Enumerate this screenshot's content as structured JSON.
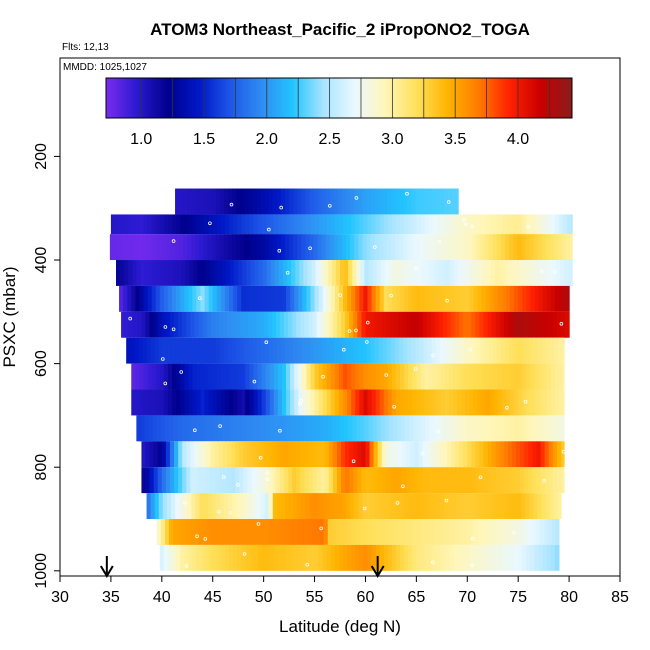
{
  "chart_data": {
    "type": "heatmap",
    "title": "ATOM3 Northeast_Pacific_2 iPropONO2_TOGA",
    "flights_label": "Flts: 12,13",
    "mmdd_label": "MMDD: 1025,1027",
    "xlabel": "Latitude (deg N)",
    "ylabel": "PSXC (mbar)",
    "xlim": [
      30,
      85
    ],
    "ylim": [
      1010,
      10
    ],
    "x_ticks": [
      30,
      35,
      40,
      45,
      50,
      55,
      60,
      65,
      70,
      75,
      80,
      85
    ],
    "y_ticks": [
      200,
      400,
      600,
      800,
      1000
    ],
    "colorbar": {
      "range": [
        0.72,
        4.43
      ],
      "ticks": [
        1.0,
        1.5,
        2.0,
        2.5,
        3.0,
        3.5,
        4.0
      ],
      "tick_labels": [
        "1.0",
        "1.5",
        "2.0",
        "2.5",
        "3.0",
        "3.5",
        "4.0"
      ],
      "colors": [
        "#7a2cf0",
        "#2a1ad0",
        "#00008c",
        "#0018c8",
        "#1e56e8",
        "#2f8cf2",
        "#22c4ff",
        "#a8e4ff",
        "#eaf8ff",
        "#fff6b8",
        "#ffe05a",
        "#ffb400",
        "#ff7a00",
        "#ff2000",
        "#c80000",
        "#8a1c1c"
      ]
    },
    "arrows_latitude": [
      34.6,
      61.2
    ],
    "bands": [
      {
        "p_top": 262,
        "p_bot": 312,
        "lat_start": 41.3,
        "lat_end": 69.1,
        "lat": [
          41.3,
          45,
          50,
          55,
          60,
          65,
          69.1
        ],
        "values": [
          1.0,
          1.05,
          1.35,
          1.75,
          2.05,
          2.25,
          2.3
        ]
      },
      {
        "p_top": 312,
        "p_bot": 350,
        "lat_start": 35.0,
        "lat_end": 80.3,
        "lat": [
          35,
          38,
          42,
          48,
          55,
          60,
          65,
          70,
          75,
          80.3
        ],
        "values": [
          1.0,
          0.95,
          1.2,
          1.6,
          2.0,
          2.3,
          2.6,
          2.9,
          3.05,
          2.5
        ]
      },
      {
        "p_top": 350,
        "p_bot": 400,
        "lat_start": 34.9,
        "lat_end": 80.3,
        "lat": [
          34.9,
          38,
          42,
          46,
          50,
          55,
          60,
          65,
          70,
          75,
          80.3
        ],
        "values": [
          0.78,
          0.75,
          0.85,
          1.1,
          1.3,
          1.8,
          2.4,
          2.7,
          2.9,
          3.4,
          3.0
        ]
      },
      {
        "p_top": 400,
        "p_bot": 450,
        "lat_start": 35.5,
        "lat_end": 80.3,
        "lat": [
          35.5,
          38,
          42,
          46,
          50,
          55,
          58,
          60,
          63,
          68,
          73,
          80.3
        ],
        "values": [
          1.2,
          0.95,
          1.05,
          1.4,
          1.8,
          2.6,
          3.4,
          2.5,
          2.8,
          2.6,
          3.0,
          2.6
        ]
      },
      {
        "p_top": 450,
        "p_bot": 500,
        "lat_start": 35.8,
        "lat_end": 80.0,
        "lat": [
          35.8,
          38,
          40,
          44,
          48,
          52,
          56,
          58,
          60,
          62,
          65,
          70,
          75,
          80
        ],
        "values": [
          0.8,
          1.3,
          1.75,
          2.4,
          1.55,
          1.6,
          2.7,
          3.4,
          4.0,
          3.2,
          3.4,
          3.3,
          3.8,
          4.3
        ]
      },
      {
        "p_top": 500,
        "p_bot": 550,
        "lat_start": 36.0,
        "lat_end": 80.0,
        "lat": [
          36,
          38,
          40,
          45,
          50,
          55,
          58,
          60,
          65,
          70,
          75,
          80
        ],
        "values": [
          0.95,
          1.0,
          1.4,
          1.9,
          2.1,
          2.6,
          3.3,
          4.0,
          4.2,
          3.7,
          4.3,
          4.1
        ]
      },
      {
        "p_top": 550,
        "p_bot": 600,
        "lat_start": 36.5,
        "lat_end": 79.5,
        "lat": [
          36.5,
          40,
          45,
          50,
          55,
          60,
          65,
          70,
          75,
          79.5
        ],
        "values": [
          1.4,
          1.6,
          1.6,
          1.8,
          2.0,
          2.2,
          2.5,
          2.9,
          3.2,
          3.0
        ]
      },
      {
        "p_top": 600,
        "p_bot": 650,
        "lat_start": 37.0,
        "lat_end": 79.5,
        "lat": [
          37,
          40,
          43,
          48,
          52,
          55,
          58,
          60,
          62,
          66,
          70,
          75,
          79.5
        ],
        "values": [
          0.8,
          1.0,
          1.5,
          1.6,
          2.2,
          3.3,
          3.8,
          3.6,
          3.5,
          3.0,
          3.2,
          3.3,
          3.0
        ]
      },
      {
        "p_top": 650,
        "p_bot": 700,
        "lat_start": 37.0,
        "lat_end": 79.5,
        "lat": [
          37,
          40,
          44,
          48,
          50,
          54,
          58,
          60,
          63,
          68,
          72,
          76,
          79.5
        ],
        "values": [
          1.0,
          1.05,
          1.5,
          1.1,
          1.6,
          2.8,
          3.6,
          4.1,
          3.5,
          3.3,
          3.5,
          3.2,
          3.0
        ]
      },
      {
        "p_top": 700,
        "p_bot": 750,
        "lat_start": 37.5,
        "lat_end": 79.5,
        "lat": [
          37.5,
          42,
          47,
          52,
          56,
          60,
          65,
          70,
          75,
          79.5
        ],
        "values": [
          1.6,
          1.8,
          1.9,
          2.0,
          2.1,
          2.3,
          2.6,
          2.9,
          3.0,
          2.8
        ]
      },
      {
        "p_top": 750,
        "p_bot": 800,
        "lat_start": 38.0,
        "lat_end": 79.5,
        "lat": [
          38,
          40,
          42,
          45,
          48,
          52,
          56,
          58,
          60,
          62,
          65,
          70,
          74,
          77,
          79.5
        ],
        "values": [
          1.0,
          1.2,
          2.5,
          3.0,
          3.3,
          3.5,
          3.4,
          3.9,
          4.1,
          2.8,
          2.6,
          3.2,
          3.7,
          4.0,
          3.3
        ]
      },
      {
        "p_top": 800,
        "p_bot": 850,
        "lat_start": 38.0,
        "lat_end": 79.5,
        "lat": [
          38,
          40,
          43,
          47,
          50,
          53,
          56,
          58,
          60,
          63,
          66,
          70,
          75,
          79.5
        ],
        "values": [
          1.1,
          1.8,
          2.6,
          2.5,
          2.8,
          3.3,
          3.0,
          3.7,
          3.4,
          3.5,
          3.4,
          3.4,
          3.3,
          3.0
        ]
      },
      {
        "p_top": 850,
        "p_bot": 900,
        "lat_start": 38.5,
        "lat_end": 79.2,
        "lat": [
          38.5,
          40,
          44,
          48,
          50.5,
          51,
          55,
          58,
          60,
          65,
          70,
          75,
          79.2
        ],
        "values": [
          1.8,
          2.4,
          3.2,
          2.9,
          2.6,
          3.4,
          3.6,
          3.5,
          3.3,
          3.4,
          3.3,
          3.4,
          3.0
        ]
      },
      {
        "p_top": 900,
        "p_bot": 950,
        "lat_start": 39.5,
        "lat_end": 79.0,
        "lat": [
          39.5,
          41,
          45,
          50,
          56,
          56.5,
          60,
          65,
          70,
          75,
          79
        ],
        "values": [
          2.8,
          3.5,
          3.6,
          3.6,
          3.7,
          3.3,
          3.2,
          3.1,
          3.0,
          2.8,
          2.5
        ]
      },
      {
        "p_top": 950,
        "p_bot": 1000,
        "lat_start": 39.8,
        "lat_end": 79.0,
        "lat": [
          39.8,
          42,
          45,
          50,
          55,
          58,
          60,
          62,
          65,
          70,
          75,
          79
        ],
        "values": [
          2.6,
          3.0,
          3.2,
          3.4,
          3.3,
          3.5,
          3.6,
          3.4,
          3.1,
          2.9,
          2.7,
          2.4
        ]
      }
    ]
  }
}
